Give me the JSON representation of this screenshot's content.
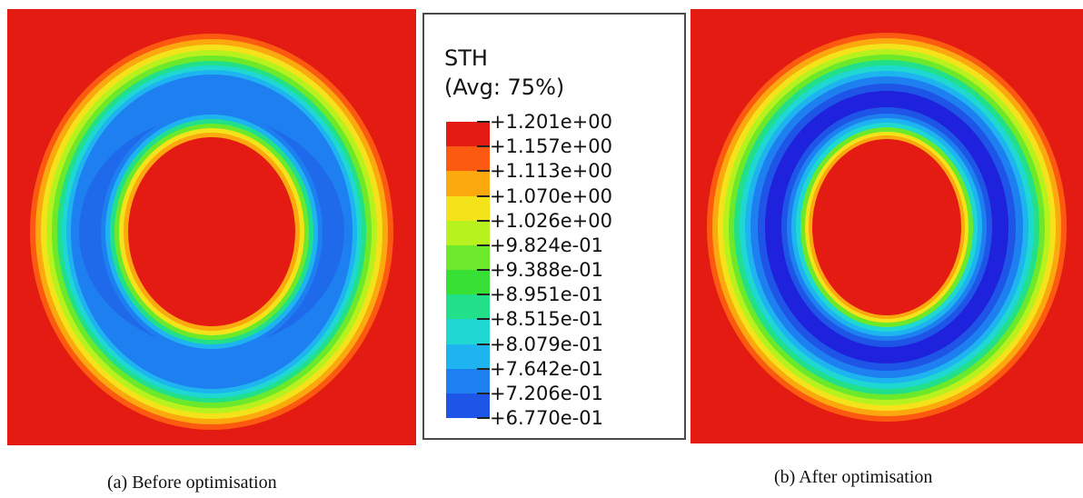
{
  "legend": {
    "variable": "STH",
    "averaging": "(Avg: 75%)",
    "colors": [
      "#e41b12",
      "#fb5a10",
      "#fca80f",
      "#f4e31a",
      "#b8f21e",
      "#6ce92a",
      "#36e034",
      "#22e08a",
      "#1ed8d1",
      "#1eb4f0",
      "#1e7ff0",
      "#1e55e6",
      "#1e22dd"
    ],
    "levels": [
      "+1.201e+00",
      "+1.157e+00",
      "+1.113e+00",
      "+1.070e+00",
      "+1.026e+00",
      "+9.824e-01",
      "+9.388e-01",
      "+8.951e-01",
      "+8.515e-01",
      "+8.079e-01",
      "+7.642e-01",
      "+7.206e-01",
      "+6.770e-01"
    ]
  },
  "captions": {
    "a": "(a)  Before optimisation",
    "b": "(b) After optimisation"
  }
}
